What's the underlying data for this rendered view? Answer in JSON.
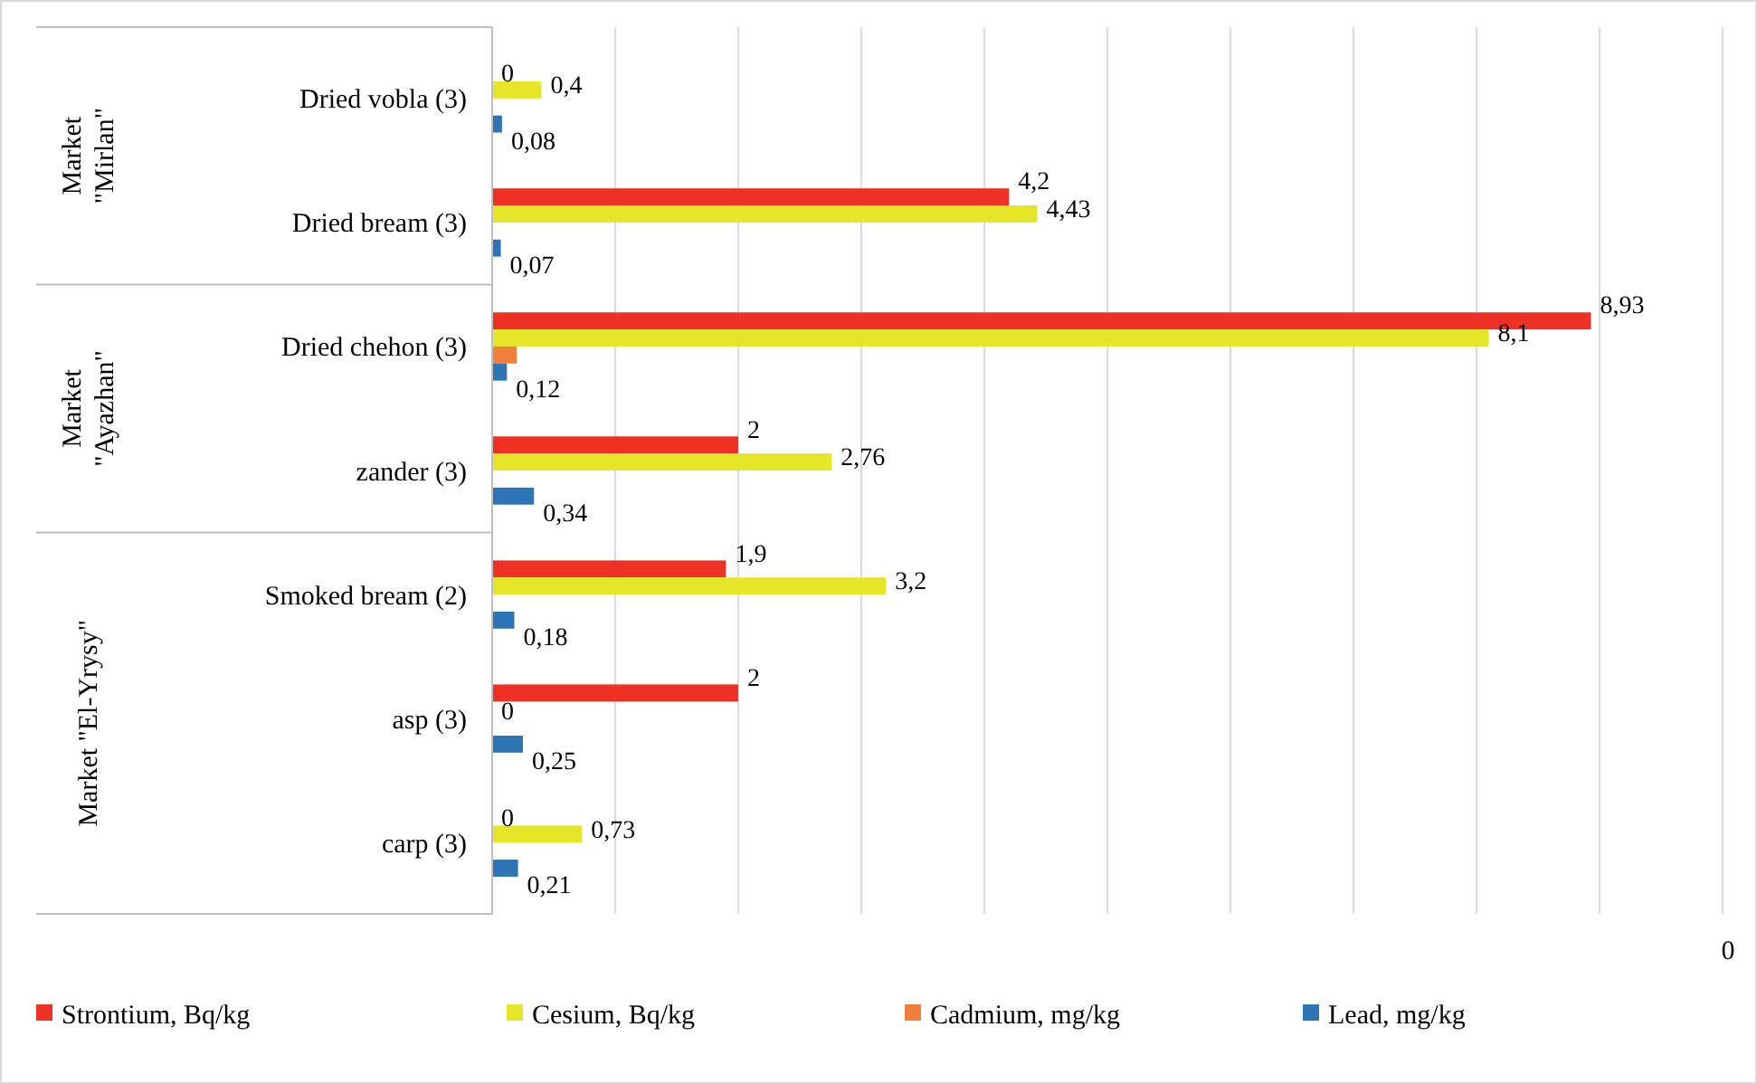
{
  "chart_data": {
    "type": "bar",
    "orientation": "horizontal",
    "categories": [
      "Dried vobla (3)",
      "Dried bream (3)",
      "Dried chehon (3)",
      "zander (3)",
      "Smoked bream (2)",
      "asp (3)",
      "carp (3)"
    ],
    "series": [
      {
        "name": "Strontium, Bq/kg",
        "color": "#ee3124",
        "values": [
          0,
          4.2,
          8.93,
          2,
          1.9,
          2,
          0
        ],
        "value_labels": [
          "0",
          "4,2",
          "8,93",
          "2",
          "1,9",
          "2",
          "0"
        ]
      },
      {
        "name": "Cesium, Bq/kg",
        "color": "#e6e629",
        "values": [
          0.4,
          4.43,
          8.1,
          2.76,
          3.2,
          0,
          0.73
        ],
        "value_labels": [
          "0,4",
          "4,43",
          "8,1",
          "2,76",
          "3,2",
          "0",
          "0,73"
        ]
      },
      {
        "name": "Cadmium, mg/kg",
        "color": "#f07f3c",
        "values": [
          null,
          null,
          0.2,
          null,
          null,
          null,
          null
        ],
        "value_labels": [
          null,
          null,
          null,
          null,
          null,
          null,
          null
        ]
      },
      {
        "name": "Lead, mg/kg",
        "color": "#2e75b6",
        "values": [
          0.08,
          0.07,
          0.12,
          0.34,
          0.18,
          0.25,
          0.21
        ],
        "value_labels": [
          "0,08",
          "0,07",
          "0,12",
          "0,34",
          "0,18",
          "0,25",
          "0,21"
        ]
      }
    ],
    "xlim": [
      0,
      10
    ],
    "xticks": [
      {
        "value": 0,
        "label": null
      },
      {
        "value": 1,
        "label": null
      },
      {
        "value": 2,
        "label": null
      },
      {
        "value": 3,
        "label": null
      },
      {
        "value": 4,
        "label": null
      },
      {
        "value": 5,
        "label": null
      },
      {
        "value": 6,
        "label": null
      },
      {
        "value": 7,
        "label": null
      },
      {
        "value": 8,
        "label": null
      },
      {
        "value": 9,
        "label": null
      },
      {
        "value": 10,
        "label": null
      }
    ],
    "grid": "x",
    "legend": "bottom",
    "tick_labels": "y",
    "annotations": [
      "Market\n\"Mirlan\"",
      "Market\n\"Ayazhan\"",
      "Market \"El-Yrysy\"",
      "0"
    ]
  }
}
